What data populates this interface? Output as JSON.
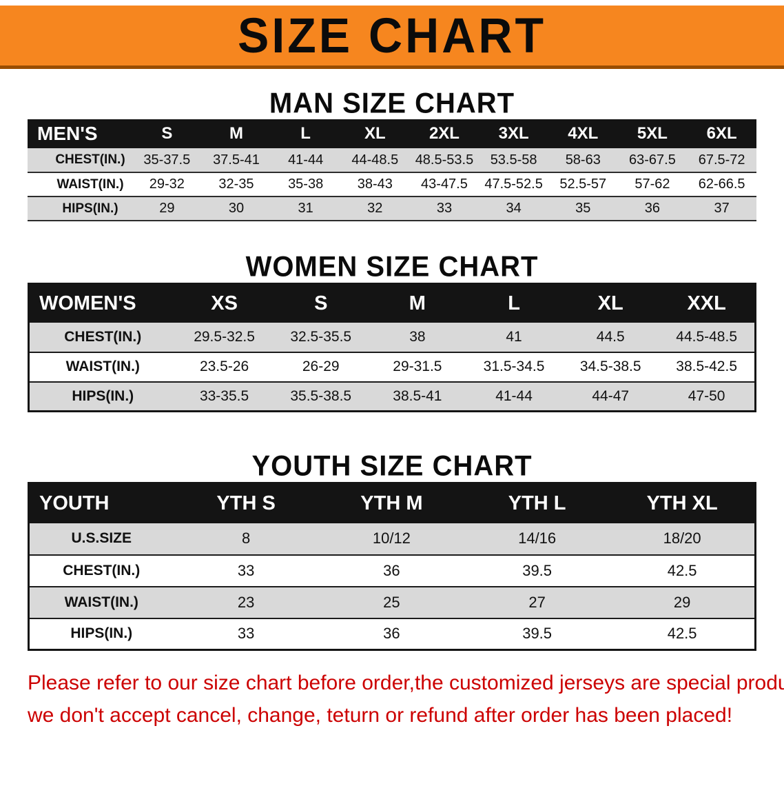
{
  "banner": {
    "title": "SIZE CHART"
  },
  "tables": {
    "men": {
      "heading": "MAN SIZE CHART",
      "header": [
        "MEN'S",
        "S",
        "M",
        "L",
        "XL",
        "2XL",
        "3XL",
        "4XL",
        "5XL",
        "6XL"
      ],
      "rows": [
        [
          "CHEST(IN.)",
          "35-37.5",
          "37.5-41",
          "41-44",
          "44-48.5",
          "48.5-53.5",
          "53.5-58",
          "58-63",
          "63-67.5",
          "67.5-72"
        ],
        [
          "WAIST(IN.)",
          "29-32",
          "32-35",
          "35-38",
          "38-43",
          "43-47.5",
          "47.5-52.5",
          "52.5-57",
          "57-62",
          "62-66.5"
        ],
        [
          "HIPS(IN.)",
          "29",
          "30",
          "31",
          "32",
          "33",
          "34",
          "35",
          "36",
          "37"
        ]
      ]
    },
    "women": {
      "heading": "WOMEN SIZE CHART",
      "header": [
        "WOMEN'S",
        "XS",
        "S",
        "M",
        "L",
        "XL",
        "XXL"
      ],
      "rows": [
        [
          "CHEST(IN.)",
          "29.5-32.5",
          "32.5-35.5",
          "38",
          "41",
          "44.5",
          "44.5-48.5"
        ],
        [
          "WAIST(IN.)",
          "23.5-26",
          "26-29",
          "29-31.5",
          "31.5-34.5",
          "34.5-38.5",
          "38.5-42.5"
        ],
        [
          "HIPS(IN.)",
          "33-35.5",
          "35.5-38.5",
          "38.5-41",
          "41-44",
          "44-47",
          "47-50"
        ]
      ]
    },
    "youth": {
      "heading": "YOUTH SIZE CHART",
      "header": [
        "YOUTH",
        "YTH S",
        "YTH M",
        "YTH L",
        "YTH XL"
      ],
      "rows": [
        [
          "U.S.SIZE",
          "8",
          "10/12",
          "14/16",
          "18/20"
        ],
        [
          "CHEST(IN.)",
          "33",
          "36",
          "39.5",
          "42.5"
        ],
        [
          "WAIST(IN.)",
          "23",
          "25",
          "27",
          "29"
        ],
        [
          "HIPS(IN.)",
          "33",
          "36",
          "39.5",
          "42.5"
        ]
      ]
    }
  },
  "disclaimer": {
    "line1": "Please refer to our size chart before order,the customized jerseys are special products,",
    "line2": "we don't accept cancel, change, teturn or refund after order has been placed!"
  },
  "colors": {
    "banner_orange": "#F6861F",
    "banner_underline": "#9A4D00",
    "table_header_black": "#141414",
    "row_gray": "#D9D9D9",
    "row_white": "#FFFFFF",
    "disclaimer_red": "#CC0000"
  }
}
